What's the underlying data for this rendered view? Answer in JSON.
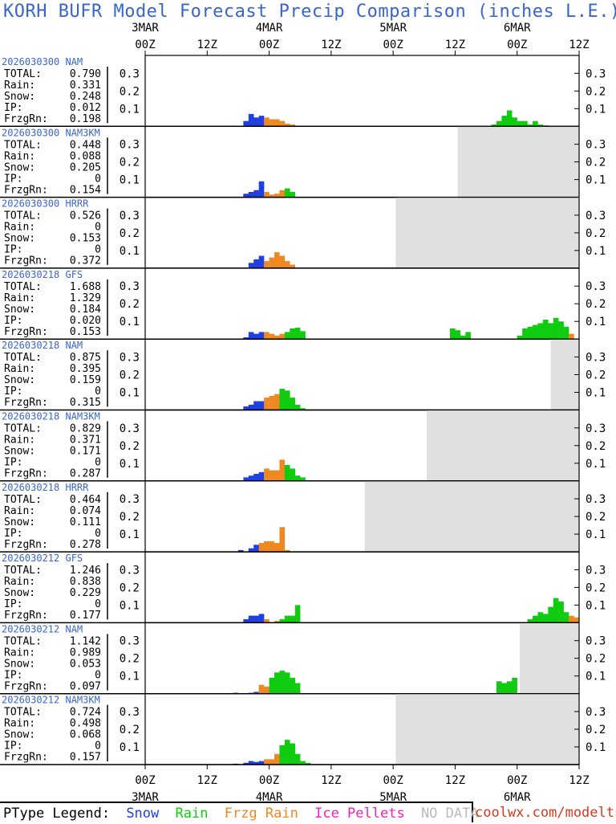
{
  "title": "KORH BUFR Model Forecast Precip Comparison (inches L.E.)",
  "colors": {
    "snow": "#1f3fe0",
    "rain": "#10cc10",
    "frzg_rain": "#ee8822",
    "ice_pellets": "#ee22bb",
    "no_data": "#e0e0e0",
    "label_blue": "#3a66cc"
  },
  "legend": {
    "prefix": "PType Legend:",
    "snow": "Snow",
    "rain": "Rain",
    "frzg_rain": "Frzg Rain",
    "ice_pellets": "Ice Pellets",
    "no_data": "NO DATA"
  },
  "credit": "coolwx.com/modelts",
  "chart_data": {
    "type": "bar",
    "stacked_panels": true,
    "ylabel": "",
    "xlabel": "",
    "ylim": [
      0,
      0.4
    ],
    "y_ticks": [
      "0.1",
      "0.2",
      "0.3"
    ],
    "x_hours_from_3MAR_00Z": [
      0,
      84
    ],
    "x_ticks_top": [
      {
        "hour": 0,
        "time": "00Z",
        "date": "3MAR"
      },
      {
        "hour": 12,
        "time": "12Z",
        "date": ""
      },
      {
        "hour": 24,
        "time": "00Z",
        "date": "4MAR"
      },
      {
        "hour": 36,
        "time": "12Z",
        "date": ""
      },
      {
        "hour": 48,
        "time": "00Z",
        "date": "5MAR"
      },
      {
        "hour": 60,
        "time": "12Z",
        "date": ""
      },
      {
        "hour": 72,
        "time": "00Z",
        "date": "6MAR"
      },
      {
        "hour": 84,
        "time": "12Z",
        "date": ""
      }
    ],
    "stat_labels": [
      "TOTAL:",
      "Rain:",
      "Snow:",
      "IP:",
      "FrzgRn:"
    ],
    "panels": [
      {
        "run": "2026030300",
        "model": "NAM",
        "stats": [
          "0.790",
          "0.331",
          "0.248",
          "0.012",
          "0.198"
        ],
        "no_data_from_hour": null,
        "bars": [
          {
            "h": 19.5,
            "v": 0.03,
            "t": "snow"
          },
          {
            "h": 20.5,
            "v": 0.07,
            "t": "snow"
          },
          {
            "h": 21.5,
            "v": 0.05,
            "t": "snow"
          },
          {
            "h": 22.5,
            "v": 0.06,
            "t": "snow"
          },
          {
            "h": 23.5,
            "v": 0.05,
            "t": "frzg_rain"
          },
          {
            "h": 24.5,
            "v": 0.04,
            "t": "frzg_rain"
          },
          {
            "h": 25.5,
            "v": 0.04,
            "t": "frzg_rain"
          },
          {
            "h": 26.5,
            "v": 0.03,
            "t": "frzg_rain"
          },
          {
            "h": 27.5,
            "v": 0.015,
            "t": "frzg_rain"
          },
          {
            "h": 28.5,
            "v": 0.01,
            "t": "frzg_rain"
          },
          {
            "h": 67.5,
            "v": 0.01,
            "t": "rain"
          },
          {
            "h": 68.5,
            "v": 0.03,
            "t": "rain"
          },
          {
            "h": 69.5,
            "v": 0.06,
            "t": "rain"
          },
          {
            "h": 70.5,
            "v": 0.09,
            "t": "rain"
          },
          {
            "h": 71.5,
            "v": 0.05,
            "t": "rain"
          },
          {
            "h": 72.5,
            "v": 0.03,
            "t": "rain"
          },
          {
            "h": 73.5,
            "v": 0.03,
            "t": "rain"
          },
          {
            "h": 74.5,
            "v": 0.01,
            "t": "rain"
          },
          {
            "h": 75.5,
            "v": 0.03,
            "t": "rain"
          },
          {
            "h": 76.5,
            "v": 0.01,
            "t": "rain"
          },
          {
            "h": 77.5,
            "v": 0.005,
            "t": "rain"
          }
        ]
      },
      {
        "run": "2026030300",
        "model": "NAM3KM",
        "stats": [
          "0.448",
          "0.088",
          "0.205",
          "0",
          "0.154"
        ],
        "no_data_from_hour": 60.5,
        "bars": [
          {
            "h": 19.5,
            "v": 0.02,
            "t": "snow"
          },
          {
            "h": 20.5,
            "v": 0.03,
            "t": "snow"
          },
          {
            "h": 21.5,
            "v": 0.04,
            "t": "snow"
          },
          {
            "h": 22.5,
            "v": 0.09,
            "t": "snow"
          },
          {
            "h": 23.5,
            "v": 0.03,
            "t": "frzg_rain"
          },
          {
            "h": 24.5,
            "v": 0.015,
            "t": "frzg_rain"
          },
          {
            "h": 25.5,
            "v": 0.02,
            "t": "frzg_rain"
          },
          {
            "h": 26.5,
            "v": 0.04,
            "t": "frzg_rain"
          },
          {
            "h": 27.5,
            "v": 0.05,
            "t": "rain"
          },
          {
            "h": 28.5,
            "v": 0.03,
            "t": "rain"
          }
        ]
      },
      {
        "run": "2026030300",
        "model": "HRRR",
        "stats": [
          "0.526",
          "0",
          "0.153",
          "0",
          "0.372"
        ],
        "no_data_from_hour": 48.5,
        "bars": [
          {
            "h": 20.5,
            "v": 0.03,
            "t": "snow"
          },
          {
            "h": 21.5,
            "v": 0.05,
            "t": "snow"
          },
          {
            "h": 22.5,
            "v": 0.07,
            "t": "snow"
          },
          {
            "h": 23.5,
            "v": 0.04,
            "t": "frzg_rain"
          },
          {
            "h": 24.5,
            "v": 0.06,
            "t": "frzg_rain"
          },
          {
            "h": 25.5,
            "v": 0.09,
            "t": "frzg_rain"
          },
          {
            "h": 26.5,
            "v": 0.07,
            "t": "frzg_rain"
          },
          {
            "h": 27.5,
            "v": 0.04,
            "t": "frzg_rain"
          },
          {
            "h": 28.5,
            "v": 0.02,
            "t": "frzg_rain"
          }
        ]
      },
      {
        "run": "2026030218",
        "model": "GFS",
        "stats": [
          "1.688",
          "1.329",
          "0.184",
          "0.020",
          "0.153"
        ],
        "no_data_from_hour": null,
        "bars": [
          {
            "h": 19.5,
            "v": 0.01,
            "t": "snow"
          },
          {
            "h": 20.5,
            "v": 0.04,
            "t": "snow"
          },
          {
            "h": 21.5,
            "v": 0.03,
            "t": "snow"
          },
          {
            "h": 22.5,
            "v": 0.04,
            "t": "snow"
          },
          {
            "h": 23.5,
            "v": 0.04,
            "t": "frzg_rain"
          },
          {
            "h": 24.5,
            "v": 0.03,
            "t": "frzg_rain"
          },
          {
            "h": 25.5,
            "v": 0.02,
            "t": "frzg_rain"
          },
          {
            "h": 26.5,
            "v": 0.03,
            "t": "frzg_rain"
          },
          {
            "h": 27.5,
            "v": 0.04,
            "t": "rain"
          },
          {
            "h": 28.5,
            "v": 0.06,
            "t": "rain"
          },
          {
            "h": 29.5,
            "v": 0.065,
            "t": "rain"
          },
          {
            "h": 30.5,
            "v": 0.045,
            "t": "rain"
          },
          {
            "h": 59.5,
            "v": 0.06,
            "t": "rain"
          },
          {
            "h": 60.5,
            "v": 0.05,
            "t": "rain"
          },
          {
            "h": 61.5,
            "v": 0.02,
            "t": "rain"
          },
          {
            "h": 62.5,
            "v": 0.04,
            "t": "rain"
          },
          {
            "h": 72.5,
            "v": 0.02,
            "t": "rain"
          },
          {
            "h": 73.5,
            "v": 0.06,
            "t": "rain"
          },
          {
            "h": 74.5,
            "v": 0.07,
            "t": "rain"
          },
          {
            "h": 75.5,
            "v": 0.08,
            "t": "rain"
          },
          {
            "h": 76.5,
            "v": 0.09,
            "t": "rain"
          },
          {
            "h": 77.5,
            "v": 0.11,
            "t": "rain"
          },
          {
            "h": 78.5,
            "v": 0.09,
            "t": "rain"
          },
          {
            "h": 79.5,
            "v": 0.12,
            "t": "rain"
          },
          {
            "h": 80.5,
            "v": 0.1,
            "t": "rain"
          },
          {
            "h": 81.5,
            "v": 0.07,
            "t": "rain"
          },
          {
            "h": 82.5,
            "v": 0.03,
            "t": "frzg_rain"
          }
        ]
      },
      {
        "run": "2026030218",
        "model": "NAM",
        "stats": [
          "0.875",
          "0.395",
          "0.159",
          "0",
          "0.315"
        ],
        "no_data_from_hour": 78.5,
        "bars": [
          {
            "h": 19.5,
            "v": 0.02,
            "t": "snow"
          },
          {
            "h": 20.5,
            "v": 0.03,
            "t": "snow"
          },
          {
            "h": 21.5,
            "v": 0.05,
            "t": "snow"
          },
          {
            "h": 22.5,
            "v": 0.05,
            "t": "snow"
          },
          {
            "h": 23.5,
            "v": 0.07,
            "t": "frzg_rain"
          },
          {
            "h": 24.5,
            "v": 0.08,
            "t": "frzg_rain"
          },
          {
            "h": 25.5,
            "v": 0.09,
            "t": "frzg_rain"
          },
          {
            "h": 26.5,
            "v": 0.12,
            "t": "rain"
          },
          {
            "h": 27.5,
            "v": 0.11,
            "t": "rain"
          },
          {
            "h": 28.5,
            "v": 0.07,
            "t": "rain"
          },
          {
            "h": 29.5,
            "v": 0.03,
            "t": "rain"
          },
          {
            "h": 30.5,
            "v": 0.01,
            "t": "rain"
          }
        ]
      },
      {
        "run": "2026030218",
        "model": "NAM3KM",
        "stats": [
          "0.829",
          "0.371",
          "0.171",
          "0",
          "0.287"
        ],
        "no_data_from_hour": 54.5,
        "bars": [
          {
            "h": 19.5,
            "v": 0.02,
            "t": "snow"
          },
          {
            "h": 20.5,
            "v": 0.03,
            "t": "snow"
          },
          {
            "h": 21.5,
            "v": 0.04,
            "t": "snow"
          },
          {
            "h": 22.5,
            "v": 0.05,
            "t": "snow"
          },
          {
            "h": 23.5,
            "v": 0.07,
            "t": "frzg_rain"
          },
          {
            "h": 24.5,
            "v": 0.06,
            "t": "frzg_rain"
          },
          {
            "h": 25.5,
            "v": 0.06,
            "t": "frzg_rain"
          },
          {
            "h": 26.5,
            "v": 0.12,
            "t": "frzg_rain"
          },
          {
            "h": 27.5,
            "v": 0.09,
            "t": "rain"
          },
          {
            "h": 28.5,
            "v": 0.07,
            "t": "rain"
          },
          {
            "h": 29.5,
            "v": 0.03,
            "t": "rain"
          },
          {
            "h": 30.5,
            "v": 0.02,
            "t": "rain"
          }
        ]
      },
      {
        "run": "2026030218",
        "model": "HRRR",
        "stats": [
          "0.464",
          "0.074",
          "0.111",
          "0",
          "0.278"
        ],
        "no_data_from_hour": 42.5,
        "bars": [
          {
            "h": 18.5,
            "v": 0.01,
            "t": "snow"
          },
          {
            "h": 20.5,
            "v": 0.02,
            "t": "snow"
          },
          {
            "h": 21.5,
            "v": 0.04,
            "t": "snow"
          },
          {
            "h": 22.5,
            "v": 0.05,
            "t": "frzg_rain"
          },
          {
            "h": 23.5,
            "v": 0.06,
            "t": "frzg_rain"
          },
          {
            "h": 24.5,
            "v": 0.06,
            "t": "frzg_rain"
          },
          {
            "h": 25.5,
            "v": 0.05,
            "t": "frzg_rain"
          },
          {
            "h": 26.5,
            "v": 0.14,
            "t": "frzg_rain"
          },
          {
            "h": 27.5,
            "v": 0.01,
            "t": "frzg_rain"
          }
        ]
      },
      {
        "run": "2026030212",
        "model": "GFS",
        "stats": [
          "1.246",
          "0.838",
          "0.229",
          "0",
          "0.177"
        ],
        "no_data_from_hour": null,
        "bars": [
          {
            "h": 19.5,
            "v": 0.02,
            "t": "snow"
          },
          {
            "h": 20.5,
            "v": 0.04,
            "t": "snow"
          },
          {
            "h": 21.5,
            "v": 0.04,
            "t": "snow"
          },
          {
            "h": 22.5,
            "v": 0.05,
            "t": "snow"
          },
          {
            "h": 23.5,
            "v": 0.02,
            "t": "frzg_rain"
          },
          {
            "h": 25.5,
            "v": 0.01,
            "t": "frzg_rain"
          },
          {
            "h": 26.5,
            "v": 0.02,
            "t": "rain"
          },
          {
            "h": 27.5,
            "v": 0.04,
            "t": "rain"
          },
          {
            "h": 28.5,
            "v": 0.04,
            "t": "rain"
          },
          {
            "h": 29.5,
            "v": 0.1,
            "t": "rain"
          },
          {
            "h": 74.5,
            "v": 0.02,
            "t": "rain"
          },
          {
            "h": 75.5,
            "v": 0.04,
            "t": "rain"
          },
          {
            "h": 76.5,
            "v": 0.06,
            "t": "rain"
          },
          {
            "h": 77.5,
            "v": 0.05,
            "t": "rain"
          },
          {
            "h": 78.5,
            "v": 0.09,
            "t": "rain"
          },
          {
            "h": 79.5,
            "v": 0.14,
            "t": "rain"
          },
          {
            "h": 80.5,
            "v": 0.12,
            "t": "rain"
          },
          {
            "h": 81.5,
            "v": 0.06,
            "t": "rain"
          },
          {
            "h": 82.5,
            "v": 0.04,
            "t": "frzg_rain"
          },
          {
            "h": 83.5,
            "v": 0.03,
            "t": "frzg_rain"
          }
        ]
      },
      {
        "run": "2026030212",
        "model": "NAM",
        "stats": [
          "1.142",
          "0.989",
          "0.053",
          "0",
          "0.097"
        ],
        "no_data_from_hour": 72.5,
        "bars": [
          {
            "h": 17.5,
            "v": 0.005,
            "t": "snow"
          },
          {
            "h": 20.5,
            "v": 0.005,
            "t": "snow"
          },
          {
            "h": 21.5,
            "v": 0.01,
            "t": "snow"
          },
          {
            "h": 22.5,
            "v": 0.05,
            "t": "frzg_rain"
          },
          {
            "h": 23.5,
            "v": 0.04,
            "t": "frzg_rain"
          },
          {
            "h": 24.5,
            "v": 0.09,
            "t": "rain"
          },
          {
            "h": 25.5,
            "v": 0.12,
            "t": "rain"
          },
          {
            "h": 26.5,
            "v": 0.13,
            "t": "rain"
          },
          {
            "h": 27.5,
            "v": 0.12,
            "t": "rain"
          },
          {
            "h": 28.5,
            "v": 0.09,
            "t": "rain"
          },
          {
            "h": 29.5,
            "v": 0.06,
            "t": "rain"
          },
          {
            "h": 68.5,
            "v": 0.07,
            "t": "rain"
          },
          {
            "h": 69.5,
            "v": 0.06,
            "t": "rain"
          },
          {
            "h": 70.5,
            "v": 0.07,
            "t": "rain"
          },
          {
            "h": 71.5,
            "v": 0.09,
            "t": "rain"
          }
        ]
      },
      {
        "run": "2026030212",
        "model": "NAM3KM",
        "stats": [
          "0.724",
          "0.498",
          "0.068",
          "0",
          "0.157"
        ],
        "no_data_from_hour": 48.5,
        "bars": [
          {
            "h": 17.5,
            "v": 0.005,
            "t": "snow"
          },
          {
            "h": 19.5,
            "v": 0.01,
            "t": "snow"
          },
          {
            "h": 20.5,
            "v": 0.02,
            "t": "snow"
          },
          {
            "h": 21.5,
            "v": 0.015,
            "t": "snow"
          },
          {
            "h": 22.5,
            "v": 0.02,
            "t": "snow"
          },
          {
            "h": 23.5,
            "v": 0.03,
            "t": "frzg_rain"
          },
          {
            "h": 24.5,
            "v": 0.03,
            "t": "frzg_rain"
          },
          {
            "h": 25.5,
            "v": 0.06,
            "t": "frzg_rain"
          },
          {
            "h": 26.5,
            "v": 0.11,
            "t": "rain"
          },
          {
            "h": 27.5,
            "v": 0.14,
            "t": "rain"
          },
          {
            "h": 28.5,
            "v": 0.12,
            "t": "rain"
          },
          {
            "h": 29.5,
            "v": 0.06,
            "t": "rain"
          },
          {
            "h": 30.5,
            "v": 0.02,
            "t": "rain"
          },
          {
            "h": 31.5,
            "v": 0.01,
            "t": "rain"
          }
        ]
      }
    ]
  }
}
